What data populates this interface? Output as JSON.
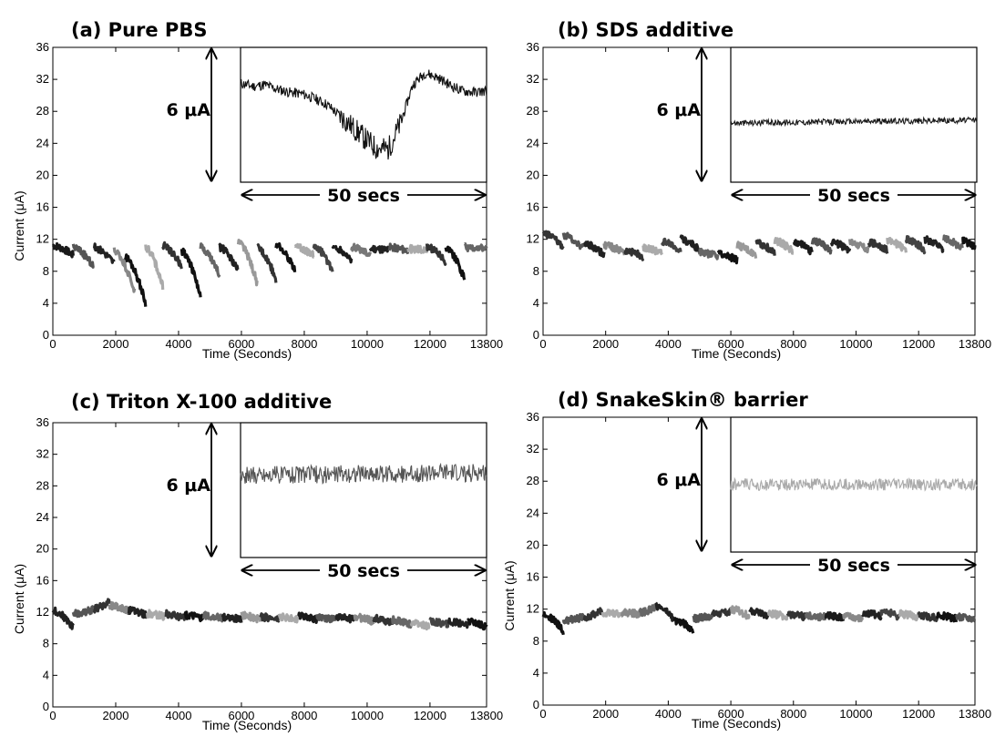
{
  "chart_data": [
    {
      "type": "line",
      "title": "(a) Pure PBS",
      "xlabel": "Time (Seconds)",
      "ylabel": "Current (μA)",
      "xlim": [
        0,
        13800
      ],
      "ylim": [
        0,
        36
      ],
      "xticks": [
        0,
        2000,
        4000,
        6000,
        8000,
        10000,
        12000,
        13800
      ],
      "yticks": [
        0,
        4,
        8,
        12,
        16,
        20,
        24,
        28,
        32,
        36
      ],
      "inset": {
        "amplitude_label": "6 μA",
        "duration_label": "50 secs",
        "pattern": "drift",
        "color": "#111111",
        "y": [
          31.2,
          30.8,
          31.0,
          30.4,
          30.0,
          29.8,
          29.2,
          28.4,
          27.0,
          25.5,
          24.0,
          22.6,
          22.4,
          25.8,
          31.0,
          32.6,
          32.0,
          31.0,
          30.2,
          30.0,
          30.2
        ]
      },
      "segments": [
        {
          "x": [
            0,
            650
          ],
          "y": [
            11.2,
            10.0
          ],
          "color": "#1a1a1a"
        },
        {
          "x": [
            650,
            1300
          ],
          "y": [
            11.0,
            8.5
          ],
          "color": "#555555"
        },
        {
          "x": [
            1300,
            1950
          ],
          "y": [
            11.0,
            9.0
          ],
          "color": "#222222"
        },
        {
          "x": [
            1950,
            2600
          ],
          "y": [
            10.6,
            5.5
          ],
          "color": "#888888"
        },
        {
          "x": [
            2300,
            2950
          ],
          "y": [
            9.8,
            4.0
          ],
          "color": "#111111"
        },
        {
          "x": [
            2950,
            3500
          ],
          "y": [
            11.0,
            6.0
          ],
          "color": "#aaaaaa"
        },
        {
          "x": [
            3500,
            4100
          ],
          "y": [
            11.2,
            8.5
          ],
          "color": "#333333"
        },
        {
          "x": [
            4100,
            4700
          ],
          "y": [
            10.5,
            4.8
          ],
          "color": "#111111"
        },
        {
          "x": [
            4700,
            5300
          ],
          "y": [
            11.0,
            7.5
          ],
          "color": "#666666"
        },
        {
          "x": [
            5300,
            5900
          ],
          "y": [
            11.0,
            8.0
          ],
          "color": "#222222"
        },
        {
          "x": [
            5900,
            6500
          ],
          "y": [
            11.6,
            6.5
          ],
          "color": "#999999"
        },
        {
          "x": [
            6500,
            7100
          ],
          "y": [
            11.0,
            7.0
          ],
          "color": "#333333"
        },
        {
          "x": [
            7100,
            7700
          ],
          "y": [
            11.2,
            8.2
          ],
          "color": "#111111"
        },
        {
          "x": [
            7700,
            8300
          ],
          "y": [
            11.0,
            10.0
          ],
          "color": "#aaaaaa"
        },
        {
          "x": [
            8300,
            8900
          ],
          "y": [
            11.2,
            8.0
          ],
          "color": "#444444"
        },
        {
          "x": [
            8900,
            9500
          ],
          "y": [
            11.0,
            9.5
          ],
          "color": "#1a1a1a"
        },
        {
          "x": [
            9500,
            10100
          ],
          "y": [
            11.0,
            10.2
          ],
          "color": "#777777"
        },
        {
          "x": [
            10100,
            10700
          ],
          "y": [
            10.8,
            10.6
          ],
          "color": "#222222"
        },
        {
          "x": [
            10700,
            11300
          ],
          "y": [
            11.0,
            10.6
          ],
          "color": "#555555"
        },
        {
          "x": [
            11300,
            11900
          ],
          "y": [
            10.8,
            10.6
          ],
          "color": "#aaaaaa"
        },
        {
          "x": [
            11900,
            12500
          ],
          "y": [
            11.0,
            9.2
          ],
          "color": "#333333"
        },
        {
          "x": [
            12500,
            13100
          ],
          "y": [
            11.0,
            7.0
          ],
          "color": "#111111"
        },
        {
          "x": [
            13100,
            13800
          ],
          "y": [
            11.0,
            10.8
          ],
          "color": "#666666"
        }
      ]
    },
    {
      "type": "line",
      "title": "(b) SDS additive",
      "xlabel": "Time (Seconds)",
      "ylabel": "",
      "xlim": [
        0,
        13800
      ],
      "ylim": [
        0,
        36
      ],
      "xticks": [
        0,
        2000,
        4000,
        6000,
        8000,
        10000,
        12000,
        13800
      ],
      "yticks": [
        0,
        4,
        8,
        12,
        16,
        20,
        24,
        28,
        32,
        36
      ],
      "inset": {
        "amplitude_label": "6 μA",
        "duration_label": "50 secs",
        "pattern": "noise",
        "color": "#1a1a1a",
        "y": [
          25.9,
          26.3
        ],
        "noise": 0.8
      },
      "segments": [
        {
          "x": [
            0,
            650
          ],
          "y": [
            12.8,
            11.0
          ],
          "color": "#333333"
        },
        {
          "x": [
            650,
            1300
          ],
          "y": [
            12.5,
            10.8
          ],
          "color": "#555555"
        },
        {
          "x": [
            1300,
            1950
          ],
          "y": [
            11.5,
            10.0
          ],
          "color": "#222222"
        },
        {
          "x": [
            1950,
            2600
          ],
          "y": [
            11.2,
            10.4
          ],
          "color": "#888888"
        },
        {
          "x": [
            2600,
            3200
          ],
          "y": [
            10.6,
            9.8
          ],
          "color": "#333333"
        },
        {
          "x": [
            3200,
            3800
          ],
          "y": [
            11.0,
            10.2
          ],
          "color": "#aaaaaa"
        },
        {
          "x": [
            3800,
            4400
          ],
          "y": [
            11.8,
            10.4
          ],
          "color": "#444444"
        },
        {
          "x": [
            4400,
            5000
          ],
          "y": [
            12.0,
            10.6
          ],
          "color": "#222222"
        },
        {
          "x": [
            5000,
            5600
          ],
          "y": [
            10.4,
            9.8
          ],
          "color": "#666666"
        },
        {
          "x": [
            5600,
            6200
          ],
          "y": [
            10.2,
            9.4
          ],
          "color": "#111111"
        },
        {
          "x": [
            6200,
            6800
          ],
          "y": [
            11.2,
            10.0
          ],
          "color": "#999999"
        },
        {
          "x": [
            6800,
            7400
          ],
          "y": [
            11.6,
            10.2
          ],
          "color": "#333333"
        },
        {
          "x": [
            7400,
            8000
          ],
          "y": [
            11.8,
            10.4
          ],
          "color": "#aaaaaa"
        },
        {
          "x": [
            8000,
            8600
          ],
          "y": [
            11.6,
            10.4
          ],
          "color": "#1a1a1a"
        },
        {
          "x": [
            8600,
            9200
          ],
          "y": [
            11.8,
            10.6
          ],
          "color": "#555555"
        },
        {
          "x": [
            9200,
            9800
          ],
          "y": [
            11.6,
            10.6
          ],
          "color": "#222222"
        },
        {
          "x": [
            9800,
            10400
          ],
          "y": [
            11.6,
            10.6
          ],
          "color": "#888888"
        },
        {
          "x": [
            10400,
            11000
          ],
          "y": [
            11.6,
            10.6
          ],
          "color": "#333333"
        },
        {
          "x": [
            11000,
            11600
          ],
          "y": [
            11.8,
            10.6
          ],
          "color": "#aaaaaa"
        },
        {
          "x": [
            11600,
            12200
          ],
          "y": [
            12.0,
            10.6
          ],
          "color": "#444444"
        },
        {
          "x": [
            12200,
            12800
          ],
          "y": [
            12.0,
            10.6
          ],
          "color": "#222222"
        },
        {
          "x": [
            12800,
            13400
          ],
          "y": [
            12.0,
            10.8
          ],
          "color": "#666666"
        },
        {
          "x": [
            13400,
            13800
          ],
          "y": [
            11.8,
            11.0
          ],
          "color": "#111111"
        }
      ]
    },
    {
      "type": "line",
      "title": "(c) Triton X-100 additive",
      "xlabel": "Time (Seconds)",
      "ylabel": "Current (μA)",
      "xlim": [
        0,
        13800
      ],
      "ylim": [
        0,
        36
      ],
      "xticks": [
        0,
        2000,
        4000,
        6000,
        8000,
        10000,
        12000,
        13800
      ],
      "yticks": [
        0,
        4,
        8,
        12,
        16,
        20,
        24,
        28,
        32,
        36
      ],
      "inset": {
        "amplitude_label": "6 μA",
        "duration_label": "50 secs",
        "pattern": "noise",
        "color": "#555555",
        "y": [
          29.0,
          29.3
        ],
        "noise": 2.4
      },
      "segments": [
        {
          "x": [
            0,
            650
          ],
          "y": [
            12.2,
            10.0
          ],
          "color": "#222222"
        },
        {
          "x": [
            650,
            1300
          ],
          "y": [
            11.8,
            12.4
          ],
          "color": "#555555"
        },
        {
          "x": [
            1300,
            1800
          ],
          "y": [
            12.4,
            13.4
          ],
          "color": "#333333"
        },
        {
          "x": [
            1800,
            2400
          ],
          "y": [
            12.8,
            12.2
          ],
          "color": "#888888"
        },
        {
          "x": [
            2400,
            3000
          ],
          "y": [
            12.2,
            11.6
          ],
          "color": "#222222"
        },
        {
          "x": [
            3000,
            3600
          ],
          "y": [
            11.8,
            11.4
          ],
          "color": "#aaaaaa"
        },
        {
          "x": [
            3600,
            4200
          ],
          "y": [
            11.8,
            11.2
          ],
          "color": "#333333"
        },
        {
          "x": [
            4200,
            4800
          ],
          "y": [
            11.6,
            11.2
          ],
          "color": "#111111"
        },
        {
          "x": [
            4800,
            5400
          ],
          "y": [
            11.6,
            11.2
          ],
          "color": "#666666"
        },
        {
          "x": [
            5400,
            6000
          ],
          "y": [
            11.4,
            11.0
          ],
          "color": "#222222"
        },
        {
          "x": [
            6000,
            6600
          ],
          "y": [
            11.6,
            11.0
          ],
          "color": "#999999"
        },
        {
          "x": [
            6600,
            7200
          ],
          "y": [
            11.4,
            11.0
          ],
          "color": "#333333"
        },
        {
          "x": [
            7200,
            7800
          ],
          "y": [
            11.4,
            11.0
          ],
          "color": "#aaaaaa"
        },
        {
          "x": [
            7800,
            8400
          ],
          "y": [
            11.6,
            11.0
          ],
          "color": "#1a1a1a"
        },
        {
          "x": [
            8400,
            9000
          ],
          "y": [
            11.4,
            11.0
          ],
          "color": "#555555"
        },
        {
          "x": [
            9000,
            9600
          ],
          "y": [
            11.4,
            11.0
          ],
          "color": "#222222"
        },
        {
          "x": [
            9600,
            10200
          ],
          "y": [
            11.4,
            10.8
          ],
          "color": "#888888"
        },
        {
          "x": [
            10200,
            10800
          ],
          "y": [
            11.2,
            10.6
          ],
          "color": "#333333"
        },
        {
          "x": [
            10800,
            11400
          ],
          "y": [
            11.0,
            10.4
          ],
          "color": "#666666"
        },
        {
          "x": [
            11400,
            12000
          ],
          "y": [
            10.8,
            10.0
          ],
          "color": "#aaaaaa"
        },
        {
          "x": [
            12000,
            12600
          ],
          "y": [
            10.8,
            10.4
          ],
          "color": "#444444"
        },
        {
          "x": [
            12600,
            13200
          ],
          "y": [
            10.8,
            10.2
          ],
          "color": "#222222"
        },
        {
          "x": [
            13200,
            13800
          ],
          "y": [
            10.8,
            10.0
          ],
          "color": "#111111"
        }
      ]
    },
    {
      "type": "line",
      "title": "(d) SnakeSkin® barrier",
      "xlabel": "Time (Seconds)",
      "ylabel": "Current (μA)",
      "xlim": [
        0,
        13800
      ],
      "ylim": [
        0,
        36
      ],
      "xticks": [
        0,
        2000,
        4000,
        6000,
        8000,
        10000,
        12000,
        13800
      ],
      "yticks": [
        0,
        4,
        8,
        12,
        16,
        20,
        24,
        28,
        32,
        36
      ],
      "inset": {
        "amplitude_label": "6 μA",
        "duration_label": "50 secs",
        "pattern": "noise",
        "color": "#aaaaaa",
        "y": [
          27.0,
          27.0
        ],
        "noise": 1.6
      },
      "segments": [
        {
          "x": [
            0,
            650
          ],
          "y": [
            11.4,
            9.2
          ],
          "color": "#111111"
        },
        {
          "x": [
            650,
            1300
          ],
          "y": [
            10.6,
            11.0
          ],
          "color": "#555555"
        },
        {
          "x": [
            1300,
            1900
          ],
          "y": [
            11.0,
            11.8
          ],
          "color": "#333333"
        },
        {
          "x": [
            1900,
            2500
          ],
          "y": [
            11.6,
            11.4
          ],
          "color": "#aaaaaa"
        },
        {
          "x": [
            2500,
            3100
          ],
          "y": [
            11.6,
            11.4
          ],
          "color": "#888888"
        },
        {
          "x": [
            3100,
            3600
          ],
          "y": [
            11.6,
            12.2
          ],
          "color": "#666666"
        },
        {
          "x": [
            3600,
            4200
          ],
          "y": [
            12.4,
            10.6
          ],
          "color": "#222222"
        },
        {
          "x": [
            4200,
            4800
          ],
          "y": [
            10.6,
            9.4
          ],
          "color": "#111111"
        },
        {
          "x": [
            4800,
            5400
          ],
          "y": [
            10.8,
            11.2
          ],
          "color": "#555555"
        },
        {
          "x": [
            5400,
            6000
          ],
          "y": [
            11.4,
            11.6
          ],
          "color": "#333333"
        },
        {
          "x": [
            6000,
            6600
          ],
          "y": [
            12.0,
            11.0
          ],
          "color": "#999999"
        },
        {
          "x": [
            6600,
            7200
          ],
          "y": [
            11.8,
            11.0
          ],
          "color": "#222222"
        },
        {
          "x": [
            7200,
            7800
          ],
          "y": [
            11.4,
            11.0
          ],
          "color": "#aaaaaa"
        },
        {
          "x": [
            7800,
            8400
          ],
          "y": [
            11.4,
            11.0
          ],
          "color": "#333333"
        },
        {
          "x": [
            8400,
            9000
          ],
          "y": [
            11.2,
            11.0
          ],
          "color": "#666666"
        },
        {
          "x": [
            9000,
            9600
          ],
          "y": [
            11.2,
            10.8
          ],
          "color": "#1a1a1a"
        },
        {
          "x": [
            9600,
            10200
          ],
          "y": [
            11.2,
            10.8
          ],
          "color": "#888888"
        },
        {
          "x": [
            10200,
            10800
          ],
          "y": [
            11.6,
            11.0
          ],
          "color": "#222222"
        },
        {
          "x": [
            10800,
            11400
          ],
          "y": [
            11.8,
            11.0
          ],
          "color": "#444444"
        },
        {
          "x": [
            11400,
            12000
          ],
          "y": [
            11.4,
            11.0
          ],
          "color": "#aaaaaa"
        },
        {
          "x": [
            12000,
            12600
          ],
          "y": [
            11.2,
            10.8
          ],
          "color": "#333333"
        },
        {
          "x": [
            12600,
            13200
          ],
          "y": [
            11.2,
            10.8
          ],
          "color": "#111111"
        },
        {
          "x": [
            13200,
            13800
          ],
          "y": [
            11.0,
            10.8
          ],
          "color": "#555555"
        }
      ]
    }
  ]
}
